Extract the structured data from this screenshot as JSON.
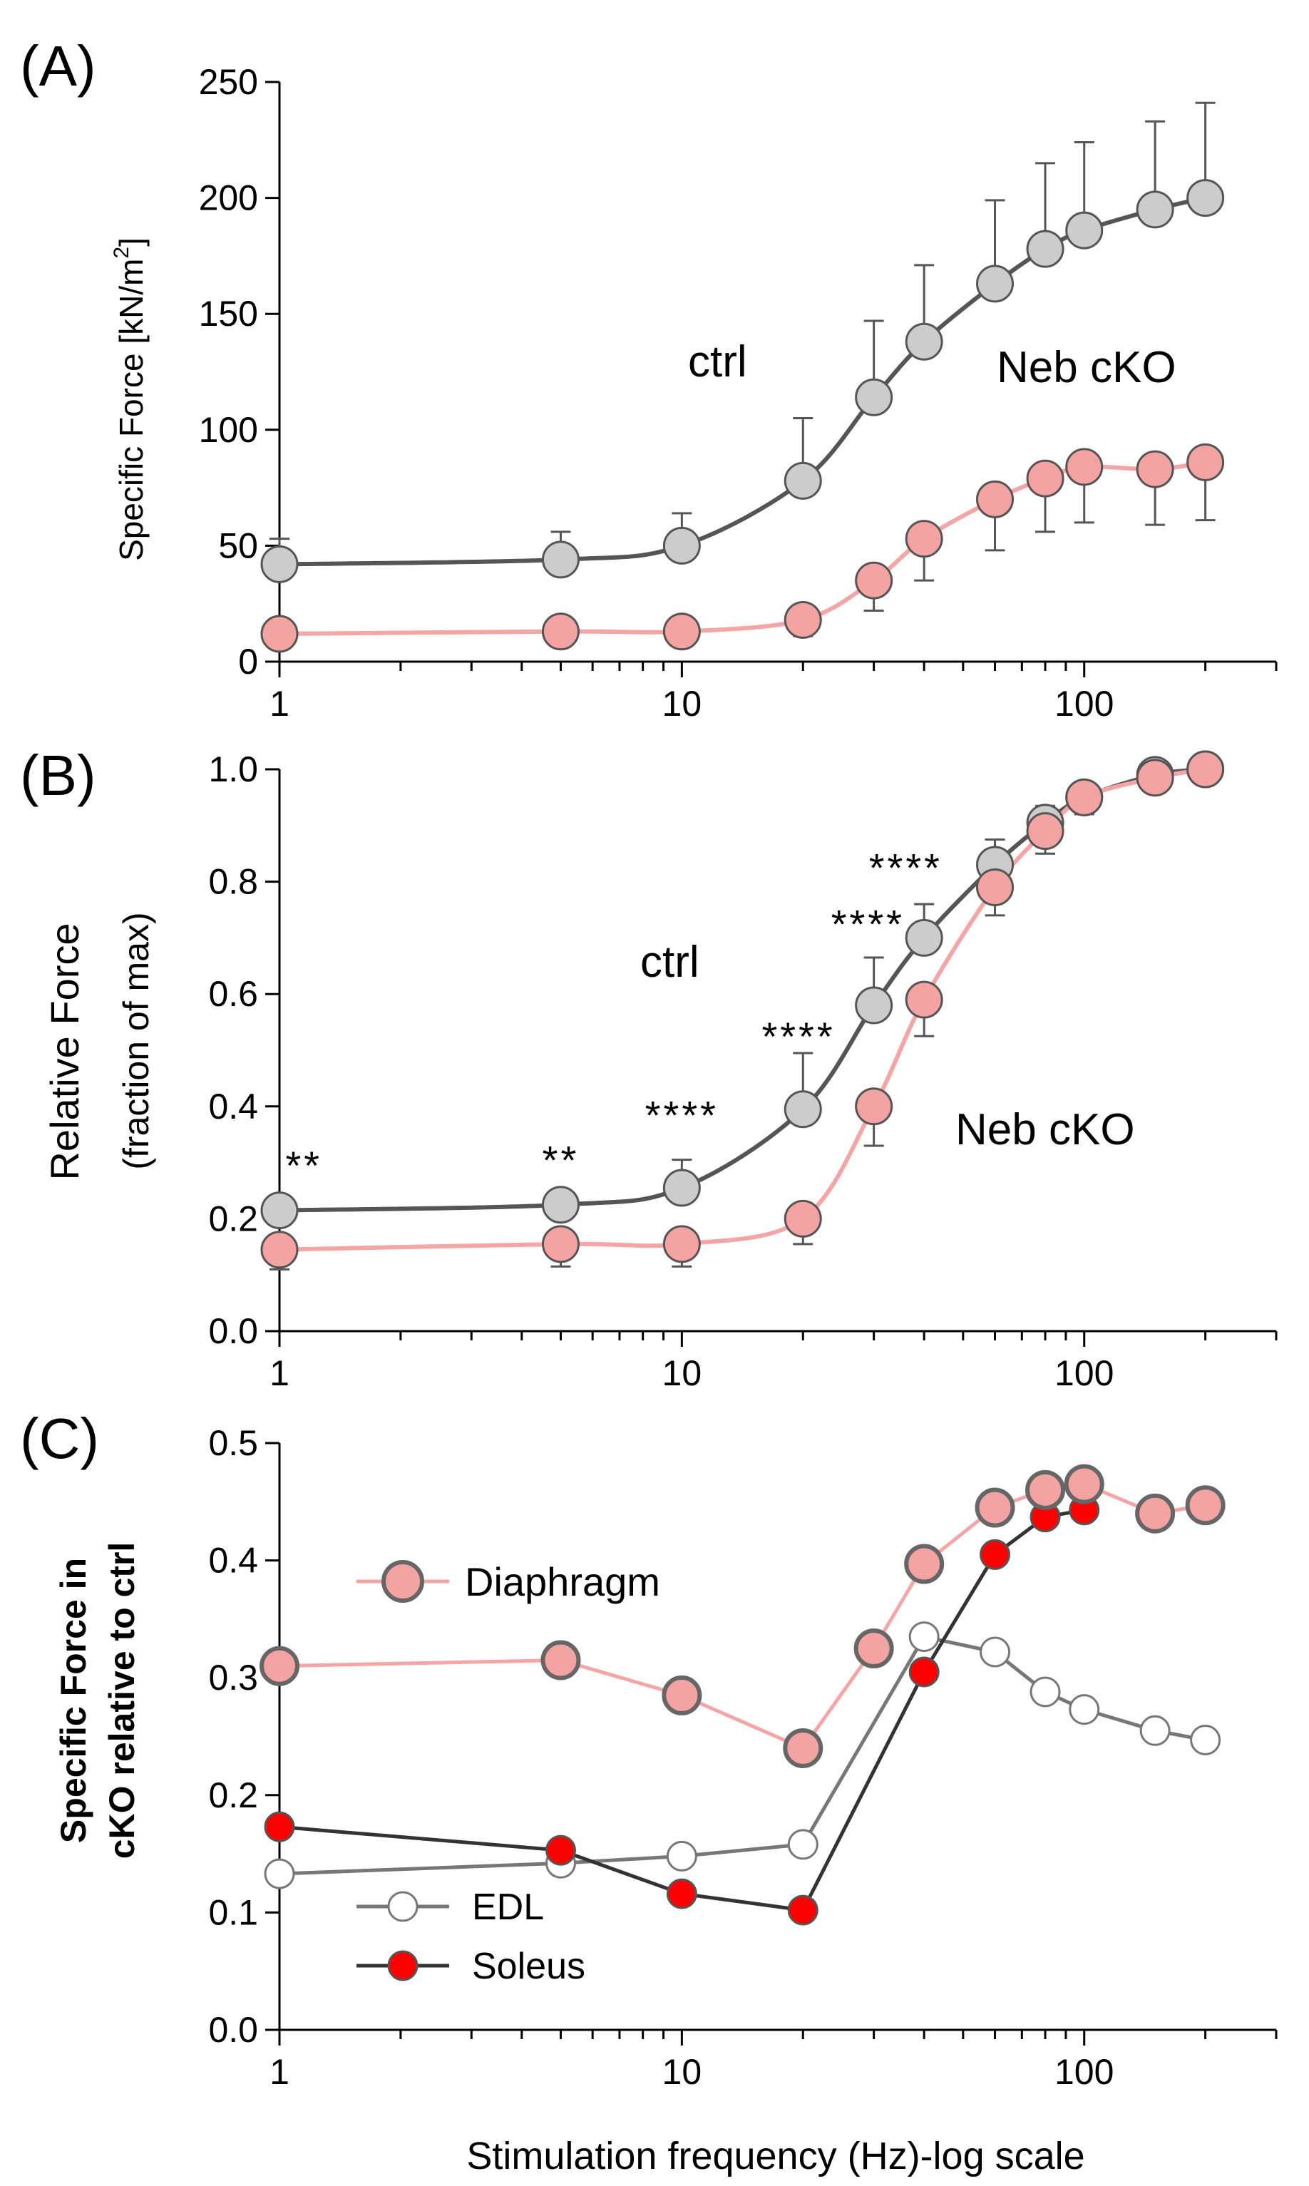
{
  "chart_data": [
    {
      "panel": "(A)",
      "type": "line",
      "ylabel": "Specific Force  [kN/m",
      "ylabel_sup": "2",
      "ylabel_close": "]",
      "xscale": "log",
      "xlim": [
        1,
        300
      ],
      "ylim": [
        0,
        250
      ],
      "xticks": [
        1,
        10,
        100
      ],
      "xtick_labels": [
        "1",
        "10",
        "100"
      ],
      "yticks": [
        0,
        50,
        100,
        150,
        200,
        250
      ],
      "ytick_labels": [
        "0",
        "50",
        "100",
        "150",
        "200",
        "250"
      ],
      "x": [
        1,
        5,
        10,
        20,
        30,
        40,
        60,
        80,
        100,
        150,
        200
      ],
      "series": [
        {
          "name": "ctrl",
          "values": [
            42,
            44,
            50,
            78,
            114,
            138,
            163,
            178,
            186,
            195,
            200
          ],
          "errors": [
            11,
            12,
            14,
            27,
            33,
            33,
            36,
            37,
            38,
            38,
            41
          ],
          "error_dir": "up",
          "fill": "#cccccc",
          "stroke": "#555555",
          "line": "#555555"
        },
        {
          "name": "Neb cKO",
          "values": [
            12,
            13,
            13,
            18,
            35,
            53,
            70,
            79,
            84,
            83,
            86
          ],
          "errors": [
            4,
            4,
            4,
            7,
            13,
            18,
            22,
            23,
            24,
            24,
            25
          ],
          "error_dir": "down",
          "fill": "#f4a3a3",
          "stroke": "#555555",
          "line": "#f4a6a6"
        }
      ],
      "annotations": [
        {
          "text": "ctrl",
          "x": 18.5,
          "y": 128
        },
        {
          "text": "Neb cKO",
          "x": 180,
          "y": 125
        }
      ]
    },
    {
      "panel": "(B)",
      "type": "line",
      "ylabel": "Relative Force",
      "ylabel2": "(fraction of max)",
      "xscale": "log",
      "xlim": [
        1,
        300
      ],
      "ylim": [
        0,
        1.0
      ],
      "xticks": [
        1,
        10,
        100
      ],
      "xtick_labels": [
        "1",
        "10",
        "100"
      ],
      "yticks": [
        0,
        0.2,
        0.4,
        0.6,
        0.8,
        1.0
      ],
      "ytick_labels": [
        "0.0",
        "0.2",
        "0.4",
        "0.6",
        "0.8",
        "1.0"
      ],
      "x": [
        1,
        5,
        10,
        20,
        30,
        40,
        60,
        80,
        100,
        150,
        200
      ],
      "series": [
        {
          "name": "ctrl",
          "values": [
            0.215,
            0.225,
            0.255,
            0.395,
            0.58,
            0.7,
            0.83,
            0.905,
            0.95,
            0.99,
            1.0
          ],
          "errors": [
            0,
            0,
            0.05,
            0.1,
            0.085,
            0.06,
            0.045,
            0.03,
            0.02,
            0.01,
            0
          ],
          "error_dir": "up",
          "fill": "#cccccc",
          "stroke": "#555555",
          "line": "#555555"
        },
        {
          "name": "Neb cKO",
          "values": [
            0.145,
            0.155,
            0.155,
            0.2,
            0.4,
            0.59,
            0.79,
            0.89,
            0.95,
            0.985,
            1.0
          ],
          "errors": [
            0.035,
            0.04,
            0.04,
            0.045,
            0.07,
            0.065,
            0.05,
            0.04,
            0.03,
            0.02,
            0
          ],
          "error_dir": "down",
          "fill": "#f4a3a3",
          "stroke": "#555555",
          "line": "#f4a6a6"
        }
      ],
      "significance": [
        {
          "text": "**",
          "x": 1.15,
          "y": 0.27
        },
        {
          "text": "**",
          "x": 5.0,
          "y": 0.28
        },
        {
          "text": "****",
          "x": 10.0,
          "y": 0.36
        },
        {
          "text": "****",
          "x": 19.5,
          "y": 0.5
        },
        {
          "text": "****",
          "x": 29.0,
          "y": 0.7
        },
        {
          "text": "****",
          "x": 36.0,
          "y": 0.8
        }
      ],
      "annotations": [
        {
          "text": "ctrl",
          "x": 14.5,
          "y": 0.62
        },
        {
          "text": "Neb cKO",
          "x": 120,
          "y": 0.34
        }
      ]
    },
    {
      "panel": "(C)",
      "type": "line",
      "xlabel": "Stimulation frequency (Hz)-log scale",
      "ylabel": "Specific Force in",
      "ylabel2": "cKO relative to ctrl",
      "xscale": "log",
      "xlim": [
        1,
        300
      ],
      "ylim": [
        0,
        0.5
      ],
      "xticks": [
        1,
        10,
        100
      ],
      "xtick_labels": [
        "1",
        "10",
        "100"
      ],
      "yticks": [
        0,
        0.1,
        0.2,
        0.3,
        0.4,
        0.5
      ],
      "ytick_labels": [
        "0.0",
        "0.1",
        "0.2",
        "0.3",
        "0.4",
        "0.5"
      ],
      "x": [
        1,
        5,
        10,
        20,
        30,
        40,
        60,
        80,
        100,
        150,
        200
      ],
      "series": [
        {
          "name": "Diaphragm",
          "x": [
            1,
            5,
            10,
            20,
            30,
            40,
            60,
            80,
            100,
            150,
            200
          ],
          "values": [
            0.31,
            0.315,
            0.285,
            0.24,
            0.325,
            0.397,
            0.445,
            0.46,
            0.465,
            0.44,
            0.447
          ],
          "fill": "#f4a3a3",
          "stroke": "#666666",
          "line": "#f4a6a6",
          "size": "large"
        },
        {
          "name": "EDL",
          "x": [
            1,
            5,
            10,
            20,
            40,
            60,
            80,
            100,
            150,
            200
          ],
          "values": [
            0.133,
            0.142,
            0.148,
            0.158,
            0.335,
            0.322,
            0.288,
            0.273,
            0.255,
            0.247
          ],
          "fill": "#ffffff",
          "stroke": "#777777",
          "line": "#777777",
          "size": "small"
        },
        {
          "name": "Soleus",
          "x": [
            1,
            5,
            10,
            20,
            40,
            60,
            80,
            100
          ],
          "values": [
            0.173,
            0.153,
            0.116,
            0.102,
            0.305,
            0.405,
            0.437,
            0.443
          ],
          "fill": "#ff0000",
          "stroke": "#555555",
          "line": "#333333",
          "size": "small"
        }
      ],
      "legend": [
        {
          "label": "Diaphragm",
          "series": 0
        },
        {
          "label": "EDL",
          "series": 1
        },
        {
          "label": "Soleus",
          "series": 2
        }
      ]
    }
  ]
}
